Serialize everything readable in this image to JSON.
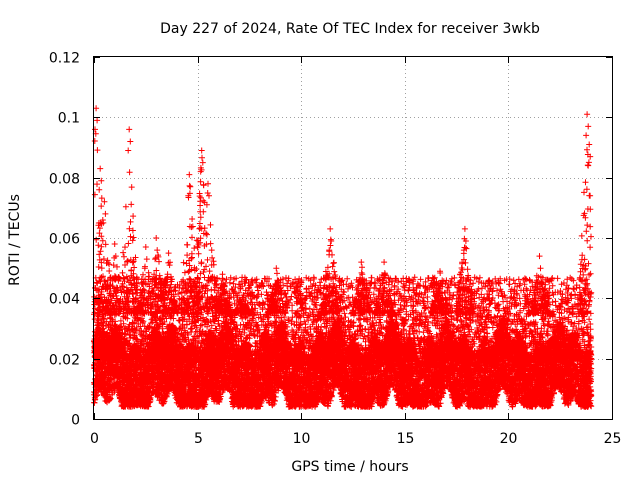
{
  "chart_data": {
    "type": "scatter",
    "title": "Day 227 of 2024, Rate Of TEC Index for receiver 3wkb",
    "xlabel": "GPS time / hours",
    "ylabel": "ROTI / TECUs",
    "xlim": [
      0,
      25
    ],
    "ylim": [
      0,
      0.12
    ],
    "xticks": [
      "0",
      "5",
      "10",
      "15",
      "20",
      "25"
    ],
    "yticks": [
      "0",
      "0.02",
      "0.04",
      "0.06",
      "0.08",
      "0.1",
      "0.12"
    ],
    "grid": true,
    "marker": "+",
    "color": "#ff0000",
    "data_time_range_hours": [
      0,
      24
    ],
    "baseline_roti": 0.015,
    "typical_upper_roti": 0.035,
    "series_envelope": [
      {
        "x": 0.1,
        "y": 0.103
      },
      {
        "x": 0.3,
        "y": 0.083
      },
      {
        "x": 0.5,
        "y": 0.072
      },
      {
        "x": 1.0,
        "y": 0.058
      },
      {
        "x": 1.7,
        "y": 0.096
      },
      {
        "x": 2.5,
        "y": 0.057
      },
      {
        "x": 3.0,
        "y": 0.06
      },
      {
        "x": 3.6,
        "y": 0.055
      },
      {
        "x": 4.6,
        "y": 0.081
      },
      {
        "x": 5.2,
        "y": 0.089
      },
      {
        "x": 5.5,
        "y": 0.078
      },
      {
        "x": 6.2,
        "y": 0.048
      },
      {
        "x": 7.2,
        "y": 0.041
      },
      {
        "x": 8.8,
        "y": 0.05
      },
      {
        "x": 11.4,
        "y": 0.063
      },
      {
        "x": 12.9,
        "y": 0.052
      },
      {
        "x": 14.0,
        "y": 0.052
      },
      {
        "x": 16.7,
        "y": 0.049
      },
      {
        "x": 17.9,
        "y": 0.063
      },
      {
        "x": 21.5,
        "y": 0.054
      },
      {
        "x": 23.8,
        "y": 0.101
      },
      {
        "x": 23.9,
        "y": 0.091
      }
    ]
  }
}
